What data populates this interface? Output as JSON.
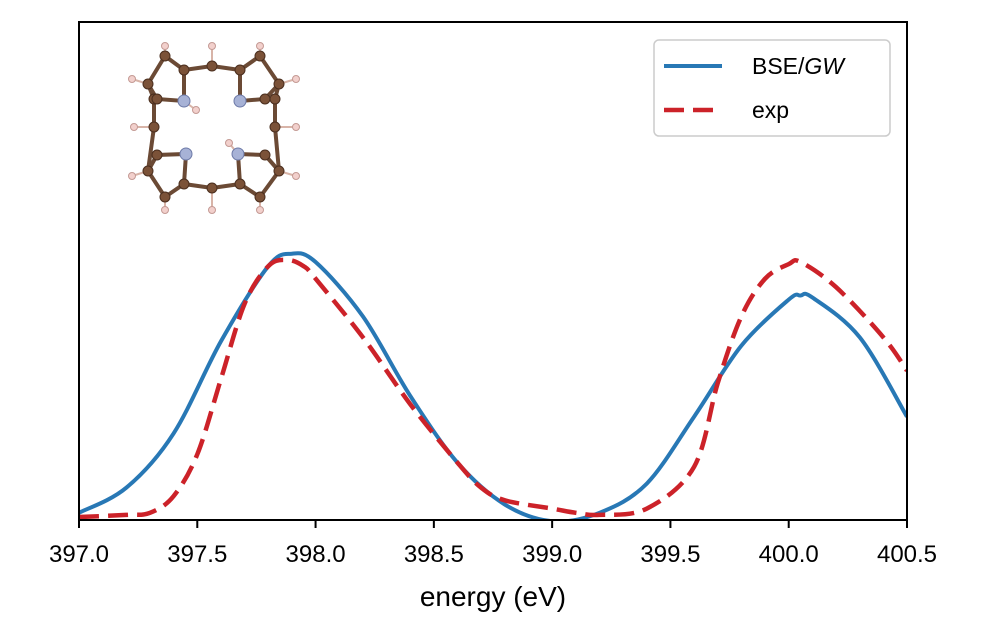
{
  "chart_data": {
    "type": "line",
    "title": "",
    "xlabel": "energy (eV)",
    "ylabel": "",
    "xlim": [
      397.0,
      400.5
    ],
    "ylim": [
      0.0,
      1.0
    ],
    "x_ticks": [
      "397.0",
      "397.5",
      "398.0",
      "398.5",
      "399.0",
      "399.5",
      "400.0",
      "400.5"
    ],
    "y_ticks_visible": false,
    "grid": false,
    "legend_position": "top-right",
    "inset": "porphyrin molecule structure (C, N, H atoms)",
    "series": [
      {
        "name": "BSE/GW",
        "name_prefix": "BSE/",
        "name_italic": "GW",
        "color": "#2878b5",
        "style": "solid",
        "x": [
          397.0,
          397.2,
          397.4,
          397.6,
          397.8,
          397.9,
          398.0,
          398.2,
          398.4,
          398.6,
          398.8,
          399.0,
          399.2,
          399.4,
          399.6,
          399.8,
          400.0,
          400.05,
          400.1,
          400.3,
          400.5
        ],
        "y": [
          0.01,
          0.07,
          0.2,
          0.42,
          0.6,
          0.63,
          0.61,
          0.48,
          0.29,
          0.13,
          0.03,
          -0.01,
          0.01,
          0.08,
          0.24,
          0.41,
          0.52,
          0.53,
          0.525,
          0.43,
          0.24
        ]
      },
      {
        "name": "exp",
        "color": "#cc2229",
        "style": "dashed",
        "x": [
          397.0,
          397.2,
          397.3,
          397.4,
          397.5,
          397.6,
          397.7,
          397.8,
          397.88,
          397.95,
          398.0,
          398.2,
          398.4,
          398.6,
          398.7,
          398.8,
          399.0,
          399.1,
          399.2,
          399.4,
          399.6,
          399.7,
          399.8,
          399.9,
          400.0,
          400.05,
          400.2,
          400.4,
          400.5
        ],
        "y": [
          0.0,
          0.005,
          0.01,
          0.05,
          0.15,
          0.33,
          0.51,
          0.6,
          0.615,
          0.6,
          0.57,
          0.43,
          0.27,
          0.13,
          0.07,
          0.04,
          0.02,
          0.01,
          0.005,
          0.02,
          0.12,
          0.32,
          0.48,
          0.57,
          0.605,
          0.61,
          0.55,
          0.43,
          0.35
        ]
      }
    ]
  }
}
